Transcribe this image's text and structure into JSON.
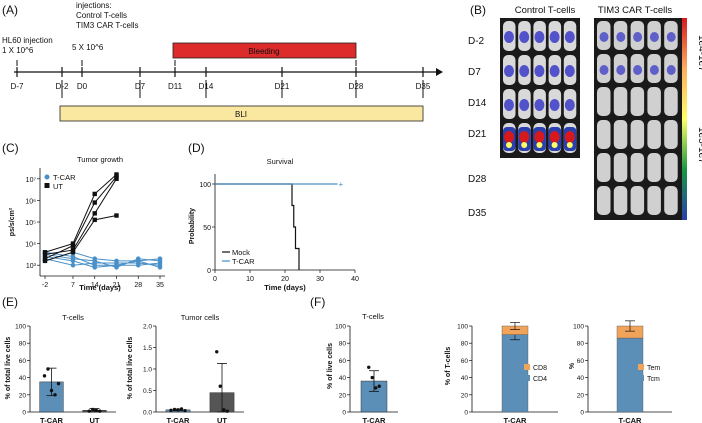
{
  "panels": {
    "A": "(A)",
    "B": "(B)",
    "C": "(C)",
    "D": "(D)",
    "E": "(E)",
    "F": "(F)"
  },
  "timeline": {
    "injection_title": "injections:",
    "injection_line1": "Control T-cells",
    "injection_line2": "TIM3 CAR T-cells",
    "hl60_line1": "HL60 injection",
    "hl60_line2": "1 X 10^6",
    "dose": "5 X 10^6",
    "bleeding_label": "Bleeding",
    "bli_label": "BLI",
    "days": [
      "D-7",
      "D-2",
      "D0",
      "D7",
      "D11",
      "D14",
      "D21",
      "D28",
      "D35"
    ],
    "colors": {
      "bleeding": "#dd2a2a",
      "bli": "#fbe8a0"
    }
  },
  "imaging": {
    "col_control": "Control T-cells",
    "col_tim3": "TIM3 CAR T-cells",
    "rows": [
      "D-2",
      "D7",
      "D14",
      "D21",
      "D28",
      "D35"
    ],
    "scale_top": "1e4-1e7",
    "scale_bottom": "1e5-1e7"
  },
  "chart_data": [
    {
      "type": "line",
      "id": "C",
      "title": "Tumor growth",
      "xlabel": "Time (days)",
      "ylabel": "ps/s/cm²",
      "x_ticks": [
        "-2",
        "7",
        "14",
        "21",
        "28",
        "35"
      ],
      "y_ticks": [
        "10³",
        "10⁴",
        "10⁵",
        "10⁶",
        "10⁷"
      ],
      "ylim_log10": [
        2.5,
        7.5
      ],
      "legend": [
        "T-CAR",
        "UT"
      ],
      "colors": {
        "T-CAR": "#4a90c8",
        "UT": "#111111"
      },
      "series": [
        {
          "name": "T-CAR",
          "x": [
            -2,
            7,
            14,
            21,
            28,
            35
          ],
          "y_log10": [
            3.4,
            3.2,
            2.9,
            3.0,
            3.0,
            3.1
          ]
        },
        {
          "name": "T-CAR",
          "x": [
            -2,
            7,
            14,
            21,
            28,
            35
          ],
          "y_log10": [
            3.6,
            3.4,
            3.0,
            3.0,
            3.2,
            3.3
          ]
        },
        {
          "name": "T-CAR",
          "x": [
            -2,
            7,
            14,
            21,
            28,
            35
          ],
          "y_log10": [
            3.3,
            3.0,
            3.1,
            3.1,
            3.1,
            3.0
          ]
        },
        {
          "name": "T-CAR",
          "x": [
            -2,
            7,
            14,
            21,
            28,
            35
          ],
          "y_log10": [
            3.5,
            3.3,
            3.2,
            2.9,
            3.3,
            3.2
          ]
        },
        {
          "name": "T-CAR",
          "x": [
            -2,
            7,
            14,
            21,
            28,
            35
          ],
          "y_log10": [
            3.2,
            3.6,
            3.3,
            3.2,
            3.2,
            2.9
          ]
        },
        {
          "name": "UT",
          "x": [
            -2,
            7,
            14,
            21
          ],
          "y_log10": [
            3.5,
            3.7,
            5.4,
            7.0
          ]
        },
        {
          "name": "UT",
          "x": [
            -2,
            7,
            14,
            21
          ],
          "y_log10": [
            3.3,
            3.9,
            5.9,
            7.1
          ]
        },
        {
          "name": "UT",
          "x": [
            -2,
            7,
            14,
            21
          ],
          "y_log10": [
            3.6,
            4.0,
            6.3,
            7.2
          ]
        },
        {
          "name": "UT",
          "x": [
            -2,
            7,
            14,
            21
          ],
          "y_log10": [
            3.2,
            3.6,
            5.1,
            5.3
          ]
        }
      ]
    },
    {
      "type": "line",
      "id": "D",
      "title": "Survival",
      "xlabel": "Time (days)",
      "ylabel": "Probability",
      "x_ticks": [
        0,
        10,
        20,
        30,
        40
      ],
      "y_ticks": [
        0,
        50,
        100
      ],
      "xlim": [
        0,
        40
      ],
      "ylim": [
        0,
        100
      ],
      "legend": [
        "Mock",
        "T-CAR"
      ],
      "colors": {
        "Mock": "#111111",
        "T-CAR": "#4a90c8"
      },
      "series": [
        {
          "name": "Mock",
          "x": [
            0,
            22,
            22,
            22.5,
            22.5,
            23,
            23,
            24,
            24
          ],
          "y": [
            100,
            100,
            75,
            75,
            50,
            50,
            25,
            25,
            0
          ]
        },
        {
          "name": "T-CAR",
          "x": [
            0,
            35
          ],
          "y": [
            100,
            100
          ]
        }
      ]
    },
    {
      "type": "bar",
      "id": "E1",
      "title": "T-cells",
      "ylabel": "% of total live cells",
      "categories": [
        "T-CAR",
        "UT"
      ],
      "values": [
        35,
        2
      ],
      "errors": [
        16,
        2
      ],
      "points": [
        [
          42,
          50,
          25,
          20,
          33
        ],
        [
          1,
          3,
          2,
          1
        ]
      ],
      "y_ticks": [
        0,
        20,
        40,
        60,
        80,
        100
      ],
      "ylim": [
        0,
        100
      ],
      "colors": [
        "#5b8fb7",
        "#555555"
      ]
    },
    {
      "type": "bar",
      "id": "E2",
      "title": "Tumor cells",
      "ylabel": "% of total live cells",
      "categories": [
        "T-CAR",
        "UT"
      ],
      "values": [
        0.05,
        0.45
      ],
      "errors": [
        0.02,
        0.68
      ],
      "points": [
        [
          0.04,
          0.06,
          0.05,
          0.07,
          0.03
        ],
        [
          1.4,
          0.6,
          0.05,
          0.02
        ]
      ],
      "y_ticks": [
        "0.0",
        "0.5",
        "1.0",
        "1.5",
        "2.0"
      ],
      "ylim": [
        0,
        2.0
      ],
      "colors": [
        "#5b8fb7",
        "#555555"
      ]
    },
    {
      "type": "bar",
      "id": "F1",
      "title": "T-cells",
      "ylabel": "% of live cells",
      "categories": [
        "T-CAR"
      ],
      "values": [
        36
      ],
      "errors": [
        12
      ],
      "points": [
        [
          52,
          40,
          28,
          30
        ]
      ],
      "y_ticks": [
        0,
        20,
        40,
        60,
        80,
        100
      ],
      "ylim": [
        0,
        100
      ],
      "colors": [
        "#5b8fb7"
      ]
    },
    {
      "type": "bar",
      "id": "F2",
      "stacked": true,
      "ylabel": "% of T-cells",
      "categories": [
        "T-CAR"
      ],
      "series": [
        {
          "name": "CD4",
          "values": [
            90
          ],
          "errors": [
            6
          ]
        },
        {
          "name": "CD8",
          "values": [
            10
          ],
          "errors": [
            4
          ]
        }
      ],
      "legend": [
        "CD8",
        "CD4"
      ],
      "y_ticks": [
        0,
        20,
        40,
        60,
        80,
        100
      ],
      "ylim": [
        0,
        100
      ],
      "colors": {
        "CD4": "#5b8fb7",
        "CD8": "#f2a35a"
      }
    },
    {
      "type": "bar",
      "id": "F3",
      "stacked": true,
      "ylabel": "%",
      "categories": [
        "T-CAR"
      ],
      "series": [
        {
          "name": "Tcm",
          "values": [
            86
          ],
          "errors": [
            0
          ]
        },
        {
          "name": "Tem",
          "values": [
            14
          ],
          "errors": [
            6
          ]
        }
      ],
      "legend": [
        "Tem",
        "Tcm"
      ],
      "y_ticks": [
        0,
        20,
        40,
        60,
        80,
        100
      ],
      "ylim": [
        0,
        100
      ],
      "colors": {
        "Tcm": "#5b8fb7",
        "Tem": "#f2a35a"
      }
    }
  ]
}
